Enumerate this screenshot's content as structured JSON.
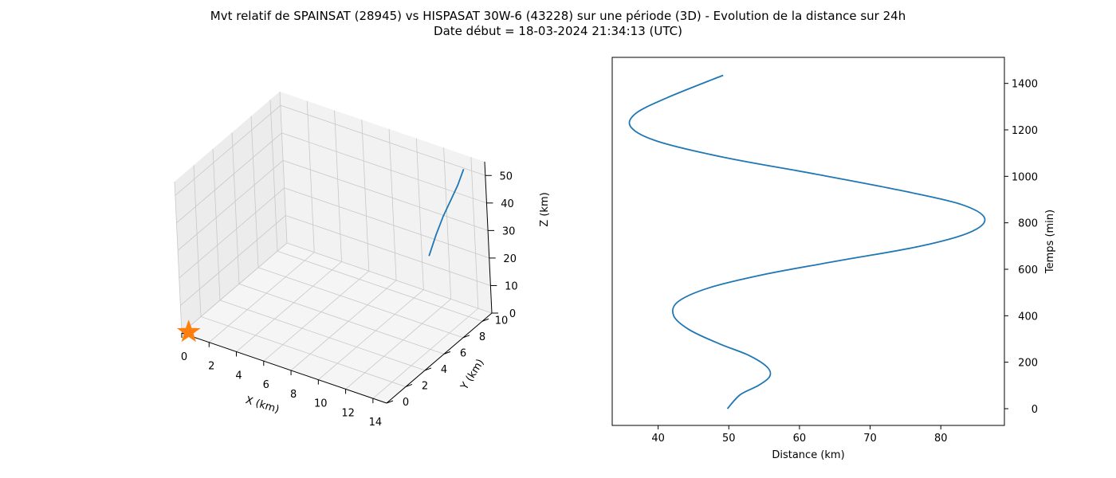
{
  "figure": {
    "title_line1": "Mvt relatif de SPAINSAT (28945) vs HISPASAT 30W-6 (43228) sur une période (3D) - Evolution de la distance sur 24h",
    "title_line2": "Date début = 18-03-2024 21:34:13 (UTC)"
  },
  "colors": {
    "series": "#1f77b4",
    "marker": "#ff7f0e",
    "pane_left": "#ececec",
    "pane_back": "#f2f2f2",
    "pane_floor": "#f5f5f5",
    "grid": "#c8c8c8"
  },
  "chart_data": [
    {
      "type": "line3d",
      "xlabel": "X (km)",
      "ylabel": "Y (km)",
      "zlabel": "Z (km)",
      "xlim": [
        0,
        15
      ],
      "ylim": [
        0,
        11
      ],
      "zlim": [
        0,
        55
      ],
      "xticks": [
        0,
        2,
        4,
        6,
        8,
        10,
        12,
        14
      ],
      "yticks": [
        0,
        2,
        4,
        6,
        8,
        10
      ],
      "zticks": [
        0,
        10,
        20,
        30,
        40,
        50
      ],
      "grid": true,
      "series": [
        {
          "x": [
            12.6,
            12.9,
            13.2,
            13.5,
            13.8,
            14.0
          ],
          "y": [
            8.2,
            8.6,
            9.0,
            9.4,
            9.8,
            10.2
          ],
          "z": [
            25,
            32,
            38,
            43,
            48,
            53
          ]
        }
      ],
      "marker": {
        "shape": "star",
        "x": 0.3,
        "y": 0.3,
        "z": 0
      }
    },
    {
      "type": "line",
      "xlabel": "Distance (km)",
      "ylabel": "Temps (min)",
      "xlim": [
        33.5,
        89
      ],
      "ylim": [
        -72,
        1512
      ],
      "xticks": [
        40,
        50,
        60,
        70,
        80
      ],
      "yticks": [
        0,
        200,
        400,
        600,
        800,
        1000,
        1200,
        1400
      ],
      "y_axis_position": "right",
      "series": [
        {
          "distance_km": [
            49.8,
            51.6,
            54.2,
            55.8,
            55.4,
            52.8,
            48.6,
            44.4,
            42.2,
            42.8,
            47.2,
            55.4,
            66.2,
            77.2,
            84.2,
            86.2,
            82.8,
            74.2,
            62.2,
            49.6,
            40.0,
            36.2,
            36.8,
            41.4,
            49.2
          ],
          "time_min": [
            0,
            60,
            100,
            140,
            180,
            230,
            280,
            340,
            400,
            460,
            520,
            580,
            640,
            700,
            760,
            820,
            880,
            940,
            1010,
            1080,
            1150,
            1210,
            1270,
            1340,
            1435
          ]
        }
      ]
    }
  ]
}
